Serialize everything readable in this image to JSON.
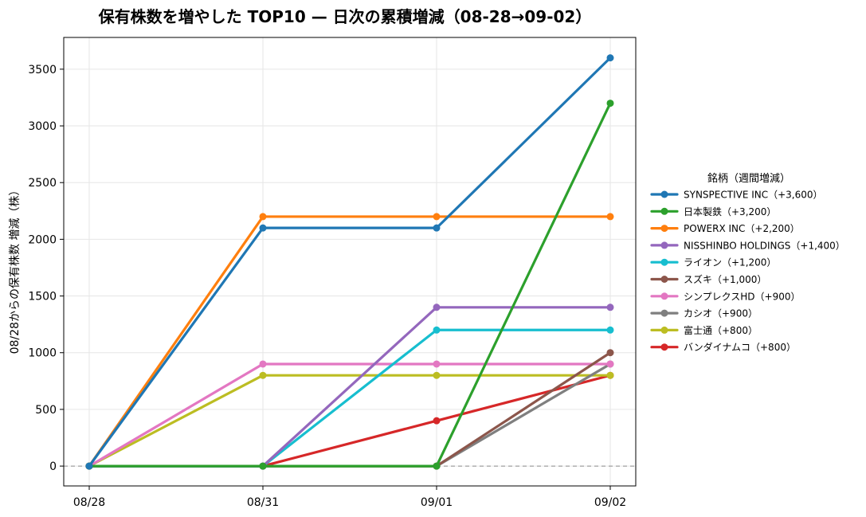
{
  "chart_data": {
    "type": "line",
    "title": "保有株数を増やした TOP10 — 日次の累積増減（08-28→09-02）",
    "xlabel": "",
    "ylabel": "08/28からの保有株数 増減（株）",
    "categories": [
      "08/28",
      "08/31",
      "09/01",
      "09/02"
    ],
    "ylim": [
      -175,
      3780
    ],
    "yticks": [
      0,
      500,
      1000,
      1500,
      2000,
      2500,
      3000,
      3500
    ],
    "ytick_labels": [
      "0",
      "500",
      "1000",
      "1500",
      "2000",
      "2500",
      "3000",
      "3500"
    ],
    "grid": true,
    "zero_line": "dashed",
    "legend": {
      "title": "銘柄（週間増減）",
      "placement": "right"
    },
    "series": [
      {
        "name": "SYNSPECTIVE INC（+3,600）",
        "color": "#1f77b4",
        "values": [
          0,
          2100,
          2100,
          3600
        ]
      },
      {
        "name": "日本製鉄（+3,200）",
        "color": "#2ca02c",
        "values": [
          0,
          0,
          0,
          3200
        ]
      },
      {
        "name": "POWERX INC（+2,200）",
        "color": "#ff7f0e",
        "values": [
          0,
          2200,
          2200,
          2200
        ]
      },
      {
        "name": "NISSHINBO HOLDINGS（+1,400）",
        "color": "#9467bd",
        "values": [
          0,
          0,
          1400,
          1400
        ]
      },
      {
        "name": "ライオン（+1,200）",
        "color": "#17becf",
        "values": [
          0,
          0,
          1200,
          1200
        ]
      },
      {
        "name": "スズキ（+1,000）",
        "color": "#8c564b",
        "values": [
          0,
          0,
          0,
          1000
        ]
      },
      {
        "name": "シンプレクスHD（+900）",
        "color": "#e377c2",
        "values": [
          0,
          900,
          900,
          900
        ]
      },
      {
        "name": "カシオ（+900）",
        "color": "#7f7f7f",
        "values": [
          0,
          0,
          0,
          900
        ]
      },
      {
        "name": "富士通（+800）",
        "color": "#bcbd22",
        "values": [
          0,
          800,
          800,
          800
        ]
      },
      {
        "name": "バンダイナムコ（+800）",
        "color": "#d62728",
        "values": [
          0,
          0,
          400,
          800
        ]
      }
    ]
  }
}
